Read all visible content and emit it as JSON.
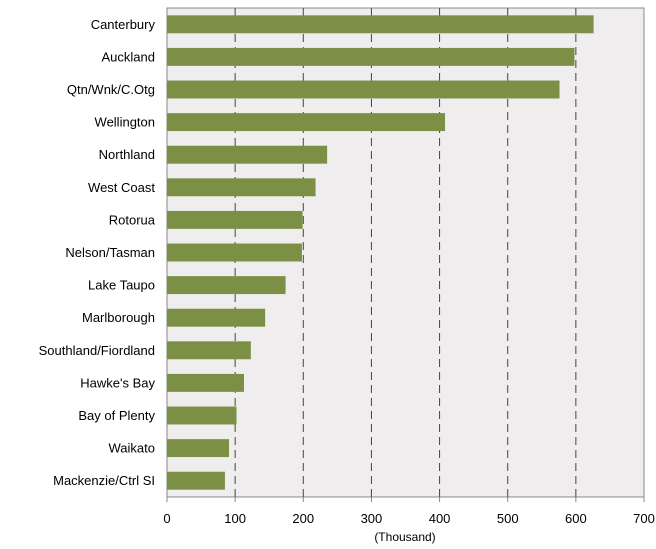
{
  "chart_data": {
    "type": "bar",
    "orientation": "horizontal",
    "categories": [
      "Canterbury",
      "Auckland",
      "Qtn/Wnk/C.Otg",
      "Wellington",
      "Northland",
      "West Coast",
      "Rotorua",
      "Nelson/Tasman",
      "Lake Taupo",
      "Marlborough",
      "Southland/Fiordland",
      "Hawke's Bay",
      "Bay of Plenty",
      "Waikato",
      "Mackenzie/Ctrl SI"
    ],
    "values": [
      626,
      598,
      576,
      408,
      235,
      218,
      199,
      198,
      174,
      144,
      123,
      113,
      102,
      91,
      85
    ],
    "title": "",
    "xlabel": "(Thousand)",
    "ylabel": "",
    "xlim": [
      0,
      700
    ],
    "xticks": [
      "0",
      "100",
      "200",
      "300",
      "400",
      "500",
      "600",
      "700"
    ],
    "grid": "vertical dashed",
    "legend": "none",
    "colors": {
      "bar": "#7b8f45",
      "plot_background": "#efedee",
      "grid": "#444444",
      "axis": "#888888"
    }
  }
}
